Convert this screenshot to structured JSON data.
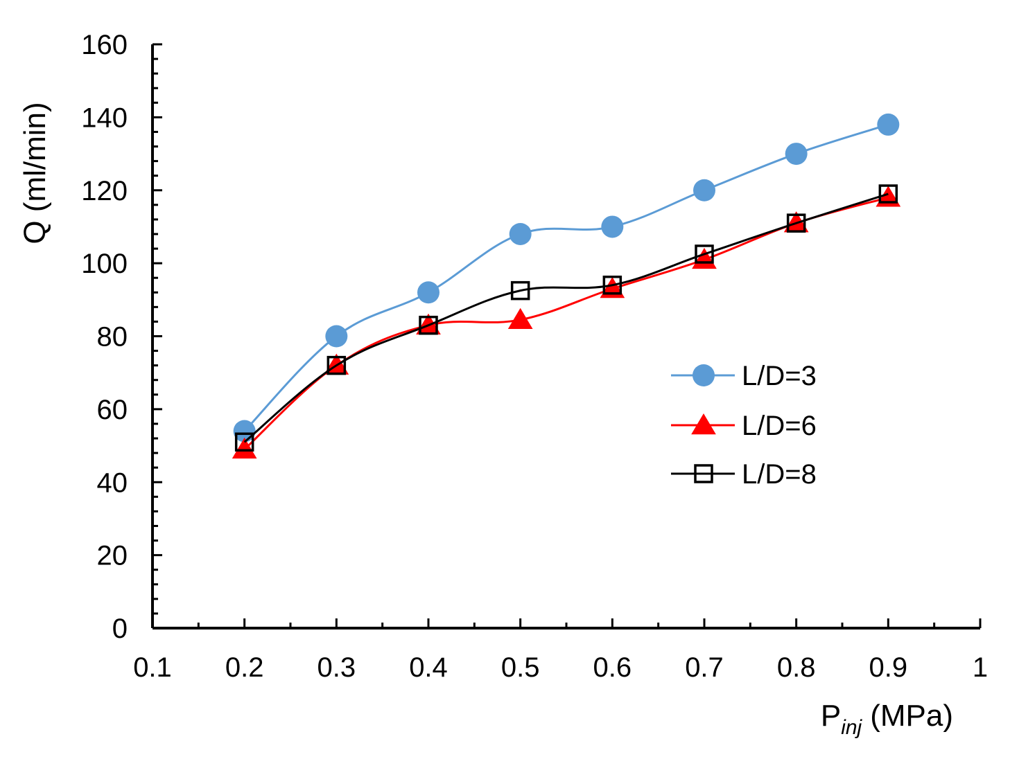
{
  "chart_data": {
    "type": "line",
    "title": "",
    "xlabel": "P",
    "xlabel_sub": "inj",
    "xlabel_unit": "(MPa)",
    "ylabel": "Q (ml/min)",
    "xlim": [
      0.1,
      1.0
    ],
    "ylim": [
      0,
      160
    ],
    "x_ticks": [
      0.1,
      0.2,
      0.3,
      0.4,
      0.5,
      0.6,
      0.7,
      0.8,
      0.9,
      1.0
    ],
    "x_tick_labels": [
      "0.1",
      "0.2",
      "0.3",
      "0.4",
      "0.5",
      "0.6",
      "0.7",
      "0.8",
      "0.9",
      "1"
    ],
    "y_ticks": [
      0,
      20,
      40,
      60,
      80,
      100,
      120,
      140,
      160
    ],
    "y_tick_labels": [
      "0",
      "20",
      "40",
      "60",
      "80",
      "100",
      "120",
      "140",
      "160"
    ],
    "grid": false,
    "legend_position": "right-middle",
    "x": [
      0.2,
      0.3,
      0.4,
      0.5,
      0.6,
      0.7,
      0.8,
      0.9
    ],
    "series": [
      {
        "name": "L/D=3",
        "marker": "circle",
        "color": "#5B9BD5",
        "values": [
          54,
          80,
          92,
          108,
          110,
          120,
          130,
          138
        ]
      },
      {
        "name": "L/D=6",
        "marker": "triangle",
        "color": "#FF0000",
        "values": [
          49,
          72,
          83,
          84.5,
          93,
          101,
          111,
          118
        ]
      },
      {
        "name": "L/D=8",
        "marker": "square-open",
        "color": "#000000",
        "values": [
          51,
          72,
          83,
          92.5,
          94,
          102.5,
          111,
          119
        ]
      }
    ]
  }
}
